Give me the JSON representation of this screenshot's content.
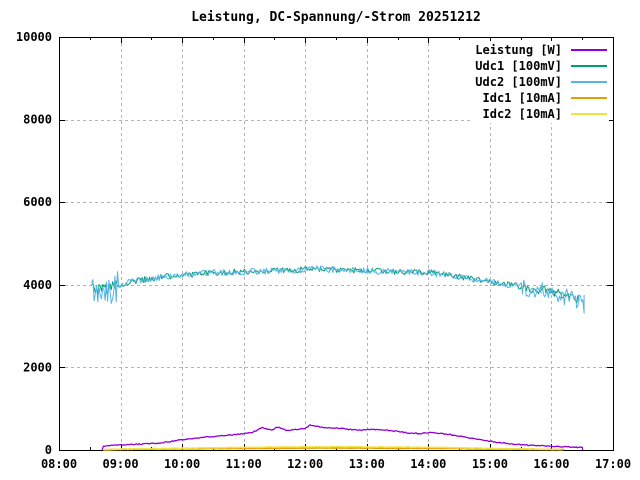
{
  "chart_data": {
    "type": "line",
    "title": "Leistung, DC-Spannung/-Strom 20251212",
    "background_color": "#ffffff",
    "frame_color": "#000000",
    "grid": {
      "show": true,
      "color": "#b4b4b4",
      "style": "dashed"
    },
    "legend_position": "top-right-inside",
    "x_axis": {
      "kind": "time",
      "range_hours": [
        8,
        17
      ],
      "tick_hours": [
        8,
        9,
        10,
        11,
        12,
        13,
        14,
        15,
        16,
        17
      ],
      "tick_labels": [
        "08:00",
        "09:00",
        "10:00",
        "11:00",
        "12:00",
        "13:00",
        "14:00",
        "15:00",
        "16:00",
        "17:00"
      ],
      "minor_tick_hours": [
        8.5,
        9.5,
        10.5,
        11.5,
        12.5,
        13.5,
        14.5,
        15.5,
        16.5
      ]
    },
    "y_axis": {
      "range": [
        0,
        10000
      ],
      "tick_values": [
        0,
        2000,
        4000,
        6000,
        8000,
        10000
      ],
      "tick_labels": [
        "0",
        "2000",
        "4000",
        "6000",
        "8000",
        "10000"
      ]
    },
    "series": [
      {
        "name": "Leistung [W]",
        "color": "#9400d3",
        "stroke_width": 1.3,
        "noise_segments": [
          [
            8.72,
            16.5,
            12
          ]
        ],
        "points": [
          [
            8.7,
            5
          ],
          [
            8.72,
            90
          ],
          [
            8.85,
            110
          ],
          [
            9.0,
            120
          ],
          [
            9.2,
            135
          ],
          [
            9.5,
            155
          ],
          [
            9.8,
            200
          ],
          [
            10.0,
            250
          ],
          [
            10.3,
            300
          ],
          [
            10.6,
            340
          ],
          [
            10.9,
            380
          ],
          [
            11.0,
            400
          ],
          [
            11.15,
            430
          ],
          [
            11.3,
            540
          ],
          [
            11.45,
            480
          ],
          [
            11.55,
            560
          ],
          [
            11.7,
            470
          ],
          [
            11.85,
            500
          ],
          [
            12.0,
            520
          ],
          [
            12.08,
            610
          ],
          [
            12.2,
            570
          ],
          [
            12.35,
            530
          ],
          [
            12.5,
            540
          ],
          [
            12.7,
            500
          ],
          [
            12.9,
            480
          ],
          [
            13.1,
            500
          ],
          [
            13.3,
            480
          ],
          [
            13.5,
            450
          ],
          [
            13.7,
            410
          ],
          [
            13.9,
            400
          ],
          [
            14.05,
            430
          ],
          [
            14.2,
            400
          ],
          [
            14.4,
            360
          ],
          [
            14.6,
            310
          ],
          [
            14.8,
            260
          ],
          [
            15.0,
            215
          ],
          [
            15.2,
            170
          ],
          [
            15.4,
            140
          ],
          [
            15.6,
            120
          ],
          [
            15.8,
            105
          ],
          [
            16.0,
            90
          ],
          [
            16.2,
            78
          ],
          [
            16.35,
            68
          ],
          [
            16.5,
            60
          ],
          [
            16.51,
            0
          ]
        ]
      },
      {
        "name": "Udc1 [100mV]",
        "color": "#009e73",
        "stroke_width": 1.0,
        "noise_segments": [
          [
            8.53,
            8.95,
            160
          ],
          [
            8.95,
            15.5,
            70
          ],
          [
            15.5,
            16.45,
            110
          ]
        ],
        "points": [
          [
            8.53,
            4000
          ],
          [
            8.6,
            3930
          ],
          [
            8.7,
            3880
          ],
          [
            8.8,
            3920
          ],
          [
            8.9,
            3970
          ],
          [
            9.0,
            4010
          ],
          [
            9.2,
            4080
          ],
          [
            9.5,
            4150
          ],
          [
            9.8,
            4210
          ],
          [
            10.0,
            4240
          ],
          [
            10.5,
            4290
          ],
          [
            11.0,
            4320
          ],
          [
            11.5,
            4340
          ],
          [
            12.0,
            4370
          ],
          [
            12.2,
            4390
          ],
          [
            12.5,
            4360
          ],
          [
            13.0,
            4340
          ],
          [
            13.5,
            4320
          ],
          [
            14.0,
            4300
          ],
          [
            14.3,
            4250
          ],
          [
            14.6,
            4170
          ],
          [
            15.0,
            4070
          ],
          [
            15.5,
            3960
          ],
          [
            16.0,
            3840
          ],
          [
            16.2,
            3760
          ],
          [
            16.35,
            3680
          ],
          [
            16.45,
            3620
          ]
        ]
      },
      {
        "name": "Udc2 [100mV]",
        "color": "#56b4e9",
        "stroke_width": 1.0,
        "noise_segments": [
          [
            8.53,
            8.95,
            400
          ],
          [
            8.95,
            15.5,
            80
          ],
          [
            15.5,
            16.53,
            230
          ]
        ],
        "points": [
          [
            8.53,
            4050
          ],
          [
            8.6,
            3930
          ],
          [
            8.7,
            3870
          ],
          [
            8.8,
            3910
          ],
          [
            8.9,
            3970
          ],
          [
            9.0,
            4010
          ],
          [
            9.2,
            4080
          ],
          [
            9.5,
            4150
          ],
          [
            9.8,
            4210
          ],
          [
            10.0,
            4240
          ],
          [
            10.5,
            4290
          ],
          [
            11.0,
            4320
          ],
          [
            11.5,
            4340
          ],
          [
            12.0,
            4370
          ],
          [
            12.2,
            4390
          ],
          [
            12.5,
            4360
          ],
          [
            13.0,
            4340
          ],
          [
            13.5,
            4320
          ],
          [
            14.0,
            4300
          ],
          [
            14.3,
            4250
          ],
          [
            14.6,
            4170
          ],
          [
            15.0,
            4070
          ],
          [
            15.5,
            3950
          ],
          [
            16.0,
            3820
          ],
          [
            16.2,
            3720
          ],
          [
            16.35,
            3620
          ],
          [
            16.53,
            3520
          ]
        ]
      },
      {
        "name": "Idc1 [10mA]",
        "color": "#e69f00",
        "stroke_width": 1.8,
        "noise_segments": [
          [
            8.72,
            16.2,
            5
          ]
        ],
        "points": [
          [
            8.72,
            5
          ],
          [
            9.0,
            15
          ],
          [
            9.5,
            25
          ],
          [
            10.0,
            32
          ],
          [
            10.5,
            36
          ],
          [
            11.0,
            40
          ],
          [
            11.5,
            44
          ],
          [
            12.0,
            48
          ],
          [
            12.5,
            50
          ],
          [
            13.0,
            48
          ],
          [
            13.5,
            45
          ],
          [
            14.0,
            42
          ],
          [
            14.5,
            35
          ],
          [
            15.0,
            25
          ],
          [
            15.5,
            18
          ],
          [
            16.0,
            12
          ],
          [
            16.2,
            8
          ]
        ]
      },
      {
        "name": "Idc2 [10mA]",
        "color": "#f0e442",
        "stroke_width": 1.5,
        "noise_segments": [
          [
            8.72,
            16.15,
            6
          ]
        ],
        "points": [
          [
            8.72,
            8
          ],
          [
            9.0,
            20
          ],
          [
            9.5,
            35
          ],
          [
            10.0,
            45
          ],
          [
            10.5,
            55
          ],
          [
            11.0,
            62
          ],
          [
            11.5,
            70
          ],
          [
            12.0,
            75
          ],
          [
            12.5,
            78
          ],
          [
            13.0,
            75
          ],
          [
            13.5,
            70
          ],
          [
            14.0,
            65
          ],
          [
            14.5,
            55
          ],
          [
            15.0,
            40
          ],
          [
            15.5,
            28
          ],
          [
            16.0,
            18
          ],
          [
            16.15,
            10
          ]
        ]
      }
    ]
  }
}
